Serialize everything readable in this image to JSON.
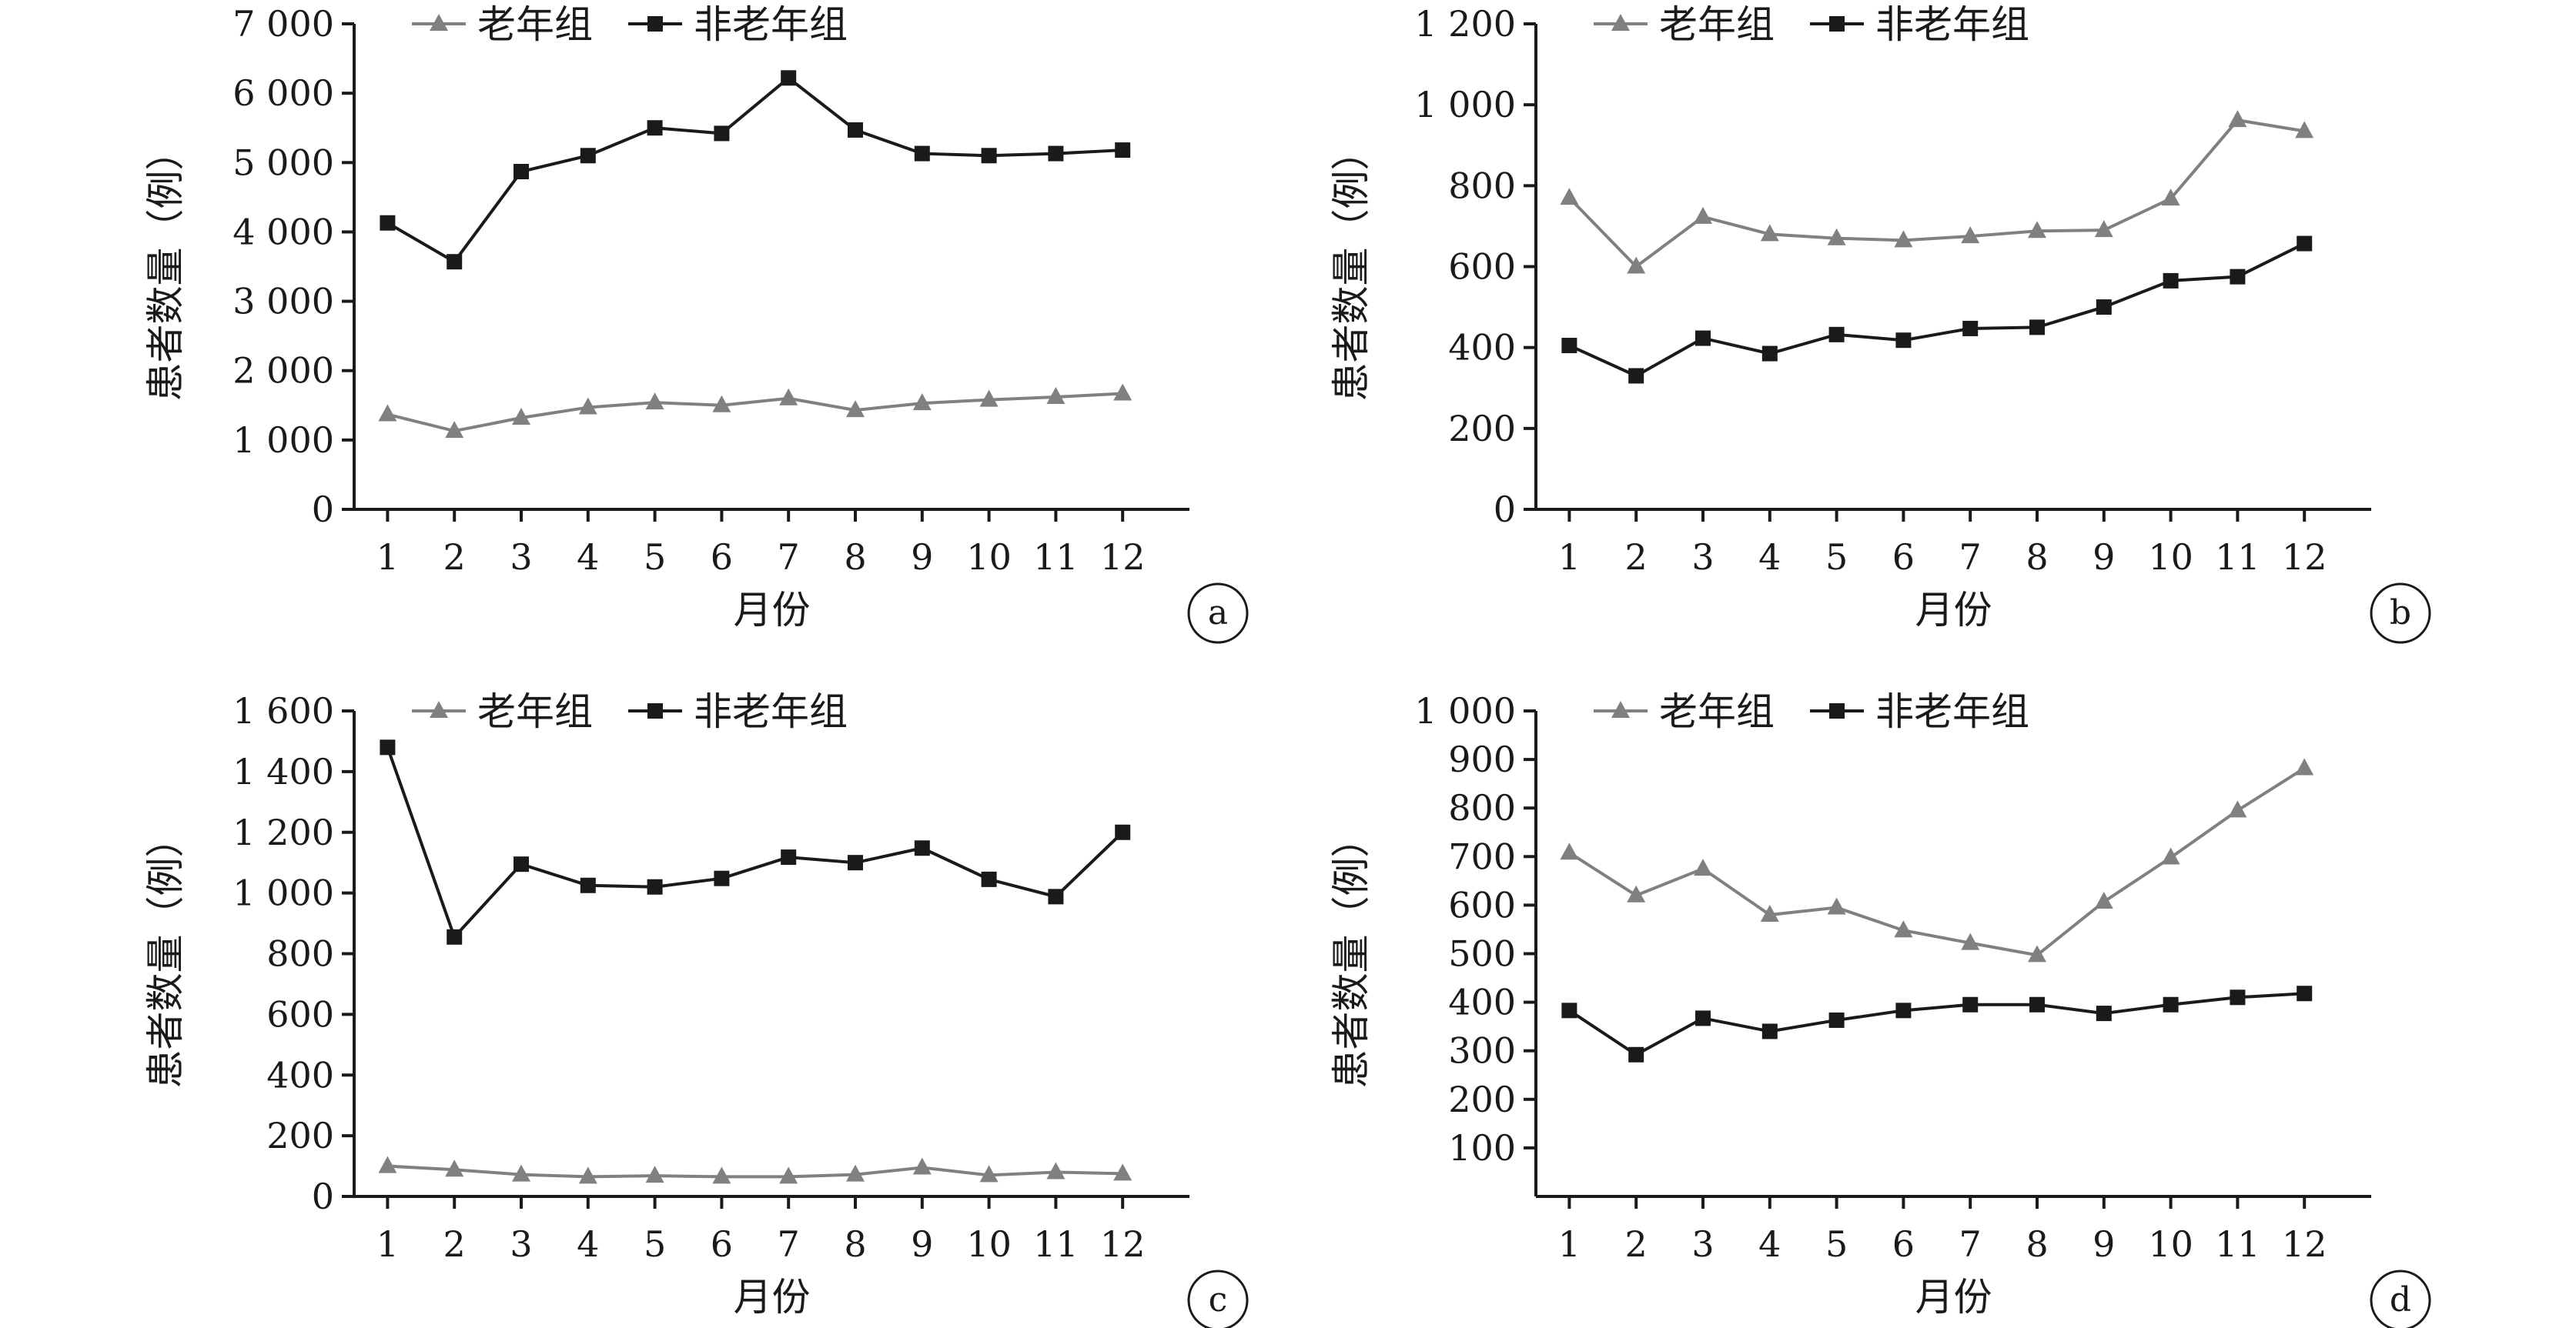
{
  "chart_data": [
    {
      "panel": "a",
      "type": "line",
      "xlabel": "月份",
      "ylabel": "患者数量（例）",
      "x": [
        1,
        2,
        3,
        4,
        5,
        6,
        7,
        8,
        9,
        10,
        11,
        12
      ],
      "x_tick_labels": [
        "1",
        "2",
        "3",
        "4",
        "5",
        "6",
        "7",
        "8",
        "9",
        "10",
        "11",
        "12"
      ],
      "ylim": [
        0,
        7000
      ],
      "y_ticks": [
        0,
        1000,
        2000,
        3000,
        4000,
        5000,
        6000,
        7000
      ],
      "y_tick_labels": [
        "0",
        "1 000",
        "2 000",
        "3 000",
        "4 000",
        "5 000",
        "6 000",
        "7 000"
      ],
      "legend_position": "top",
      "series": [
        {
          "name": "老年组",
          "marker": "triangle",
          "color": "#808080",
          "values": [
            1370,
            1130,
            1320,
            1470,
            1540,
            1500,
            1600,
            1430,
            1530,
            1580,
            1620,
            1670
          ]
        },
        {
          "name": "非老年组",
          "marker": "square",
          "color": "#1a1a1a",
          "values": [
            4130,
            3570,
            4870,
            5100,
            5500,
            5420,
            6220,
            5470,
            5130,
            5100,
            5130,
            5180
          ]
        }
      ]
    },
    {
      "panel": "b",
      "type": "line",
      "xlabel": "月份",
      "ylabel": "患者数量（例）",
      "x": [
        1,
        2,
        3,
        4,
        5,
        6,
        7,
        8,
        9,
        10,
        11,
        12
      ],
      "x_tick_labels": [
        "1",
        "2",
        "3",
        "4",
        "5",
        "6",
        "7",
        "8",
        "9",
        "10",
        "11",
        "12"
      ],
      "ylim": [
        0,
        1200
      ],
      "y_ticks": [
        0,
        200,
        400,
        600,
        800,
        1000,
        1200
      ],
      "y_tick_labels": [
        "0",
        "200",
        "400",
        "600",
        "800",
        "1 000",
        "1 200"
      ],
      "legend_position": "top",
      "series": [
        {
          "name": "老年组",
          "marker": "triangle",
          "color": "#808080",
          "values": [
            770,
            600,
            723,
            680,
            670,
            665,
            675,
            688,
            690,
            768,
            962,
            935
          ]
        },
        {
          "name": "非老年组",
          "marker": "square",
          "color": "#1a1a1a",
          "values": [
            405,
            330,
            423,
            385,
            432,
            418,
            447,
            450,
            500,
            565,
            575,
            657
          ]
        }
      ]
    },
    {
      "panel": "c",
      "type": "line",
      "xlabel": "月份",
      "ylabel": "患者数量（例）",
      "x": [
        1,
        2,
        3,
        4,
        5,
        6,
        7,
        8,
        9,
        10,
        11,
        12
      ],
      "x_tick_labels": [
        "1",
        "2",
        "3",
        "4",
        "5",
        "6",
        "7",
        "8",
        "9",
        "10",
        "11",
        "12"
      ],
      "ylim": [
        0,
        1600
      ],
      "y_ticks": [
        0,
        200,
        400,
        600,
        800,
        1000,
        1200,
        1400,
        1600
      ],
      "y_tick_labels": [
        "0",
        "200",
        "400",
        "600",
        "800",
        "1 000",
        "1 200",
        "1 400",
        "1 600"
      ],
      "legend_position": "top",
      "series": [
        {
          "name": "老年组",
          "marker": "triangle",
          "color": "#808080",
          "values": [
            100,
            88,
            72,
            65,
            68,
            65,
            65,
            72,
            95,
            70,
            80,
            75
          ]
        },
        {
          "name": "非老年组",
          "marker": "square",
          "color": "#1a1a1a",
          "values": [
            1480,
            855,
            1095,
            1025,
            1020,
            1048,
            1118,
            1100,
            1148,
            1045,
            988,
            1200
          ]
        }
      ]
    },
    {
      "panel": "d",
      "type": "line",
      "xlabel": "月份",
      "ylabel": "患者数量（例）",
      "x": [
        1,
        2,
        3,
        4,
        5,
        6,
        7,
        8,
        9,
        10,
        11,
        12
      ],
      "x_tick_labels": [
        "1",
        "2",
        "3",
        "4",
        "5",
        "6",
        "7",
        "8",
        "9",
        "10",
        "11",
        "12"
      ],
      "ylim": [
        0,
        1000
      ],
      "y_ticks": [
        100,
        200,
        300,
        400,
        500,
        600,
        700,
        800,
        900,
        1000
      ],
      "y_tick_labels": [
        "100",
        "200",
        "300",
        "400",
        "500",
        "600",
        "700",
        "800",
        "900",
        "1 000"
      ],
      "legend_position": "top",
      "series": [
        {
          "name": "老年组",
          "marker": "triangle",
          "color": "#808080",
          "values": [
            708,
            620,
            675,
            580,
            595,
            548,
            522,
            497,
            607,
            698,
            795,
            882
          ]
        },
        {
          "name": "非老年组",
          "marker": "square",
          "color": "#1a1a1a",
          "values": [
            383,
            292,
            367,
            340,
            363,
            383,
            395,
            395,
            377,
            395,
            410,
            418
          ]
        }
      ]
    }
  ]
}
